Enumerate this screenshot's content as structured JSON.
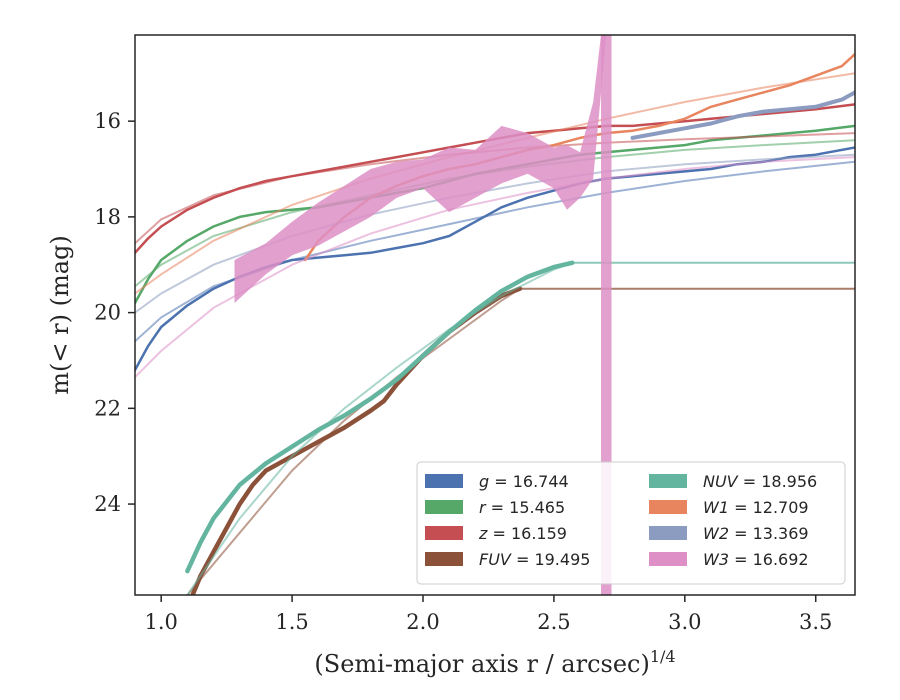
{
  "chart_data": {
    "type": "line",
    "xlabel": "(Semi-major axis r / arcsec)",
    "xlabel_superscript": "1/4",
    "ylabel": "m(< r) (mag)",
    "xlim": [
      0.9,
      3.65
    ],
    "ylim": [
      25.9,
      14.2
    ],
    "y_inverted": true,
    "grid": false,
    "legend_position": "lower-right",
    "x_ticks": [
      {
        "value": 1.0,
        "label": "1.0"
      },
      {
        "value": 1.5,
        "label": "1.5"
      },
      {
        "value": 2.0,
        "label": "2.0"
      },
      {
        "value": 2.5,
        "label": "2.5"
      },
      {
        "value": 3.0,
        "label": "3.0"
      },
      {
        "value": 3.5,
        "label": "3.5"
      }
    ],
    "y_ticks": [
      {
        "value": 16,
        "label": "16"
      },
      {
        "value": 18,
        "label": "18"
      },
      {
        "value": 20,
        "label": "20"
      },
      {
        "value": 22,
        "label": "22"
      },
      {
        "value": 24,
        "label": "24"
      }
    ],
    "series": [
      {
        "name": "g = 16.744",
        "label_var": "g",
        "label_value": "16.744",
        "color": "#4c72b0",
        "data": [
          [
            0.9,
            21.2
          ],
          [
            0.95,
            20.7
          ],
          [
            1.0,
            20.3
          ],
          [
            1.1,
            19.85
          ],
          [
            1.2,
            19.5
          ],
          [
            1.3,
            19.25
          ],
          [
            1.4,
            19.05
          ],
          [
            1.5,
            18.9
          ],
          [
            1.6,
            18.85
          ],
          [
            1.7,
            18.8
          ],
          [
            1.8,
            18.75
          ],
          [
            1.9,
            18.65
          ],
          [
            2.0,
            18.55
          ],
          [
            2.1,
            18.4
          ],
          [
            2.2,
            18.1
          ],
          [
            2.3,
            17.8
          ],
          [
            2.4,
            17.6
          ],
          [
            2.5,
            17.45
          ],
          [
            2.6,
            17.3
          ],
          [
            2.7,
            17.2
          ],
          [
            2.8,
            17.15
          ],
          [
            2.9,
            17.1
          ],
          [
            3.0,
            17.05
          ],
          [
            3.1,
            17.0
          ],
          [
            3.2,
            16.9
          ],
          [
            3.3,
            16.85
          ],
          [
            3.4,
            16.75
          ],
          [
            3.5,
            16.7
          ],
          [
            3.65,
            16.55
          ]
        ],
        "model": [
          [
            0.9,
            20.6
          ],
          [
            1.0,
            20.1
          ],
          [
            1.2,
            19.45
          ],
          [
            1.5,
            18.9
          ],
          [
            1.8,
            18.5
          ],
          [
            2.1,
            18.15
          ],
          [
            2.4,
            17.8
          ],
          [
            2.7,
            17.5
          ],
          [
            3.0,
            17.25
          ],
          [
            3.3,
            17.05
          ],
          [
            3.65,
            16.85
          ]
        ]
      },
      {
        "name": "r = 15.465",
        "label_var": "r",
        "label_value": "15.465",
        "color": "#55a868",
        "data": [
          [
            0.9,
            19.8
          ],
          [
            0.95,
            19.3
          ],
          [
            1.0,
            18.9
          ],
          [
            1.1,
            18.5
          ],
          [
            1.2,
            18.2
          ],
          [
            1.3,
            18.0
          ],
          [
            1.4,
            17.9
          ],
          [
            1.5,
            17.85
          ],
          [
            1.6,
            17.8
          ],
          [
            1.7,
            17.7
          ],
          [
            1.8,
            17.6
          ],
          [
            1.9,
            17.5
          ],
          [
            2.0,
            17.4
          ],
          [
            2.1,
            17.25
          ],
          [
            2.2,
            17.1
          ],
          [
            2.3,
            17.0
          ],
          [
            2.4,
            16.9
          ],
          [
            2.5,
            16.8
          ],
          [
            2.6,
            16.7
          ],
          [
            2.7,
            16.65
          ],
          [
            2.8,
            16.6
          ],
          [
            2.9,
            16.55
          ],
          [
            3.0,
            16.5
          ],
          [
            3.1,
            16.4
          ],
          [
            3.2,
            16.35
          ],
          [
            3.3,
            16.3
          ],
          [
            3.4,
            16.25
          ],
          [
            3.5,
            16.2
          ],
          [
            3.65,
            16.1
          ]
        ],
        "model": [
          [
            0.9,
            19.45
          ],
          [
            1.0,
            19.0
          ],
          [
            1.2,
            18.4
          ],
          [
            1.5,
            17.9
          ],
          [
            1.8,
            17.55
          ],
          [
            2.1,
            17.2
          ],
          [
            2.4,
            16.95
          ],
          [
            2.7,
            16.75
          ],
          [
            3.0,
            16.6
          ],
          [
            3.3,
            16.5
          ],
          [
            3.65,
            16.4
          ]
        ]
      },
      {
        "name": "z = 16.159",
        "label_var": "z",
        "label_value": "16.159",
        "color": "#c44e52",
        "data": [
          [
            0.9,
            18.75
          ],
          [
            0.95,
            18.45
          ],
          [
            1.0,
            18.2
          ],
          [
            1.1,
            17.85
          ],
          [
            1.2,
            17.6
          ],
          [
            1.3,
            17.4
          ],
          [
            1.4,
            17.25
          ],
          [
            1.5,
            17.15
          ],
          [
            1.6,
            17.05
          ],
          [
            1.7,
            16.95
          ],
          [
            1.8,
            16.85
          ],
          [
            1.9,
            16.75
          ],
          [
            2.0,
            16.65
          ],
          [
            2.1,
            16.55
          ],
          [
            2.2,
            16.45
          ],
          [
            2.3,
            16.35
          ],
          [
            2.4,
            16.25
          ],
          [
            2.5,
            16.2
          ],
          [
            2.6,
            16.15
          ],
          [
            2.7,
            16.1
          ],
          [
            2.8,
            16.1
          ],
          [
            2.9,
            16.05
          ],
          [
            3.0,
            16.0
          ],
          [
            3.1,
            15.95
          ],
          [
            3.2,
            15.9
          ],
          [
            3.3,
            15.85
          ],
          [
            3.4,
            15.8
          ],
          [
            3.5,
            15.75
          ],
          [
            3.65,
            15.65
          ]
        ],
        "model": [
          [
            0.9,
            18.55
          ],
          [
            1.0,
            18.05
          ],
          [
            1.2,
            17.55
          ],
          [
            1.5,
            17.15
          ],
          [
            1.8,
            16.9
          ],
          [
            2.1,
            16.7
          ],
          [
            2.4,
            16.55
          ],
          [
            2.7,
            16.45
          ],
          [
            3.0,
            16.38
          ],
          [
            3.3,
            16.32
          ],
          [
            3.65,
            16.25
          ]
        ]
      },
      {
        "name": "FUV = 19.495",
        "label_var": "FUV",
        "label_value": "19.495",
        "color": "#8c5139",
        "data": [
          [
            1.12,
            25.9
          ],
          [
            1.15,
            25.5
          ],
          [
            1.2,
            25.0
          ],
          [
            1.25,
            24.5
          ],
          [
            1.3,
            24.0
          ],
          [
            1.35,
            23.6
          ],
          [
            1.4,
            23.3
          ],
          [
            1.5,
            23.0
          ],
          [
            1.6,
            22.7
          ],
          [
            1.7,
            22.4
          ],
          [
            1.8,
            22.05
          ],
          [
            1.85,
            21.85
          ],
          [
            1.9,
            21.5
          ],
          [
            2.0,
            20.9
          ],
          [
            2.1,
            20.4
          ],
          [
            2.2,
            20.0
          ],
          [
            2.3,
            19.65
          ],
          [
            2.37,
            19.5
          ]
        ],
        "flat": [
          [
            2.37,
            19.5
          ],
          [
            3.65,
            19.5
          ]
        ],
        "model": [
          [
            1.1,
            25.9
          ],
          [
            1.3,
            24.6
          ],
          [
            1.5,
            23.3
          ],
          [
            1.7,
            22.25
          ],
          [
            1.9,
            21.35
          ],
          [
            2.1,
            20.55
          ],
          [
            2.3,
            19.75
          ],
          [
            2.37,
            19.5
          ]
        ]
      },
      {
        "name": "NUV = 18.956",
        "label_var": "NUV",
        "label_value": "18.956",
        "color": "#64b5a0",
        "data": [
          [
            1.1,
            25.4
          ],
          [
            1.15,
            24.8
          ],
          [
            1.2,
            24.3
          ],
          [
            1.3,
            23.6
          ],
          [
            1.4,
            23.15
          ],
          [
            1.5,
            22.8
          ],
          [
            1.6,
            22.45
          ],
          [
            1.7,
            22.15
          ],
          [
            1.8,
            21.8
          ],
          [
            1.9,
            21.4
          ],
          [
            2.0,
            20.9
          ],
          [
            2.1,
            20.4
          ],
          [
            2.2,
            19.95
          ],
          [
            2.3,
            19.55
          ],
          [
            2.4,
            19.25
          ],
          [
            2.5,
            19.05
          ],
          [
            2.57,
            18.96
          ]
        ],
        "flat": [
          [
            2.57,
            18.96
          ],
          [
            3.65,
            18.96
          ]
        ],
        "model": [
          [
            1.1,
            25.9
          ],
          [
            1.3,
            24.3
          ],
          [
            1.5,
            23.0
          ],
          [
            1.7,
            22.0
          ],
          [
            1.9,
            21.15
          ],
          [
            2.1,
            20.35
          ],
          [
            2.3,
            19.65
          ],
          [
            2.5,
            19.1
          ],
          [
            2.57,
            18.96
          ]
        ]
      },
      {
        "name": "W1 = 12.709",
        "label_var": "W1",
        "label_value": "12.709",
        "color": "#e8845e",
        "data": [
          [
            1.55,
            18.9
          ],
          [
            1.6,
            18.5
          ],
          [
            1.7,
            18.0
          ],
          [
            1.8,
            17.6
          ],
          [
            1.9,
            17.35
          ],
          [
            2.0,
            17.15
          ],
          [
            2.1,
            17.0
          ],
          [
            2.2,
            16.9
          ],
          [
            2.3,
            16.75
          ],
          [
            2.4,
            16.6
          ],
          [
            2.5,
            16.5
          ],
          [
            2.6,
            16.35
          ],
          [
            2.7,
            16.25
          ],
          [
            2.8,
            16.2
          ],
          [
            2.9,
            16.1
          ],
          [
            3.0,
            15.95
          ],
          [
            3.1,
            15.7
          ],
          [
            3.2,
            15.55
          ],
          [
            3.3,
            15.4
          ],
          [
            3.4,
            15.25
          ],
          [
            3.5,
            15.05
          ],
          [
            3.6,
            14.85
          ],
          [
            3.65,
            14.6
          ]
        ],
        "model": [
          [
            0.9,
            19.6
          ],
          [
            1.0,
            19.2
          ],
          [
            1.2,
            18.5
          ],
          [
            1.5,
            17.75
          ],
          [
            1.8,
            17.2
          ],
          [
            2.1,
            16.75
          ],
          [
            2.4,
            16.35
          ],
          [
            2.7,
            15.95
          ],
          [
            3.0,
            15.6
          ],
          [
            3.3,
            15.3
          ],
          [
            3.65,
            15.0
          ]
        ]
      },
      {
        "name": "W2 = 13.369",
        "label_var": "W2",
        "label_value": "13.369",
        "color": "#8c9cc0",
        "data": [
          [
            2.8,
            16.35
          ],
          [
            2.9,
            16.25
          ],
          [
            3.0,
            16.15
          ],
          [
            3.1,
            16.05
          ],
          [
            3.2,
            15.9
          ],
          [
            3.3,
            15.8
          ],
          [
            3.4,
            15.75
          ],
          [
            3.5,
            15.7
          ],
          [
            3.6,
            15.55
          ],
          [
            3.65,
            15.4
          ]
        ],
        "model": [
          [
            0.9,
            20.0
          ],
          [
            1.0,
            19.6
          ],
          [
            1.2,
            19.0
          ],
          [
            1.5,
            18.4
          ],
          [
            1.8,
            17.95
          ],
          [
            2.1,
            17.6
          ],
          [
            2.4,
            17.3
          ],
          [
            2.7,
            17.05
          ],
          [
            3.0,
            16.9
          ],
          [
            3.3,
            16.8
          ],
          [
            3.65,
            16.7
          ]
        ]
      },
      {
        "name": "W3 = 16.692",
        "label_var": "W3",
        "label_value": "16.692",
        "color": "#dd8fc6",
        "band_lower": [
          [
            1.28,
            19.8
          ],
          [
            1.4,
            19.2
          ],
          [
            1.5,
            18.8
          ],
          [
            1.6,
            18.6
          ],
          [
            1.7,
            18.3
          ],
          [
            1.8,
            18.0
          ],
          [
            1.9,
            17.6
          ],
          [
            2.0,
            17.4
          ],
          [
            2.1,
            17.9
          ],
          [
            2.2,
            17.6
          ],
          [
            2.3,
            17.3
          ],
          [
            2.4,
            17.1
          ],
          [
            2.5,
            17.4
          ],
          [
            2.55,
            17.85
          ],
          [
            2.6,
            17.6
          ],
          [
            2.65,
            17.2
          ],
          [
            2.7,
            14.2
          ]
        ],
        "band_upper": [
          [
            1.28,
            18.9
          ],
          [
            1.4,
            18.55
          ],
          [
            1.5,
            18.1
          ],
          [
            1.6,
            17.7
          ],
          [
            1.7,
            17.35
          ],
          [
            1.8,
            17.0
          ],
          [
            1.9,
            16.85
          ],
          [
            2.0,
            16.8
          ],
          [
            2.1,
            16.55
          ],
          [
            2.2,
            16.6
          ],
          [
            2.3,
            16.1
          ],
          [
            2.4,
            16.25
          ],
          [
            2.5,
            16.55
          ],
          [
            2.55,
            16.5
          ],
          [
            2.6,
            16.65
          ],
          [
            2.65,
            15.6
          ],
          [
            2.68,
            14.2
          ]
        ],
        "vertical_band_x": [
          2.68,
          2.72
        ],
        "model": [
          [
            0.9,
            21.35
          ],
          [
            1.0,
            20.8
          ],
          [
            1.2,
            19.9
          ],
          [
            1.5,
            19.0
          ],
          [
            1.8,
            18.35
          ],
          [
            2.1,
            17.85
          ],
          [
            2.4,
            17.5
          ],
          [
            2.7,
            17.2
          ],
          [
            3.0,
            17.0
          ],
          [
            3.3,
            16.85
          ],
          [
            3.65,
            16.75
          ]
        ]
      }
    ]
  }
}
